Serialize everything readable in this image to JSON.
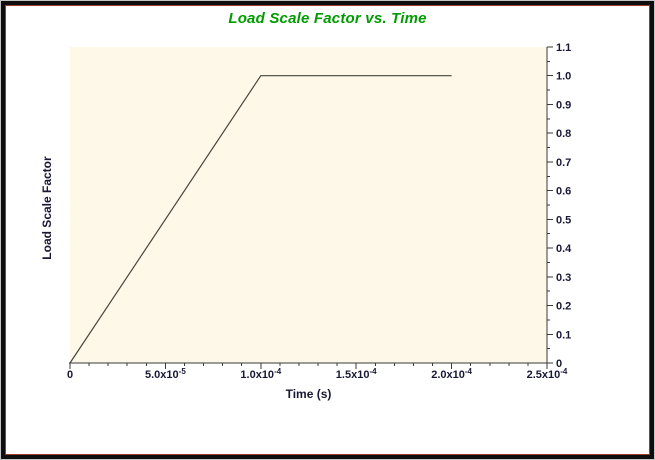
{
  "window": {
    "border_outer_color": "#c4c4c4",
    "border_black_color": "#0e0e0e",
    "border_inner_color": "#9c3b28",
    "background": "#ffffff"
  },
  "title": {
    "text": "Load Scale Factor vs. Time",
    "color": "#009b00"
  },
  "chart_data": {
    "type": "line",
    "title": "Load Scale Factor vs. Time",
    "xlabel": "Time (s)",
    "ylabel": "Load Scale Factor",
    "xlim": [
      0,
      0.00025
    ],
    "ylim": [
      0,
      1.1
    ],
    "grid": false,
    "legend": "none",
    "axis_side": {
      "x": "bottom",
      "y": "right"
    },
    "points": [
      [
        0,
        0
      ],
      [
        0.0001,
        1.0
      ],
      [
        0.0002,
        1.0
      ]
    ],
    "x_ticks": [
      {
        "value": 0,
        "label": "0"
      },
      {
        "value": 5e-05,
        "label": "5.0x10^-5"
      },
      {
        "value": 0.0001,
        "label": "1.0x10^-4"
      },
      {
        "value": 0.00015,
        "label": "1.5x10^-4"
      },
      {
        "value": 0.0002,
        "label": "2.0x10^-4"
      },
      {
        "value": 0.00025,
        "label": "2.5x10^-4"
      }
    ],
    "x_minor_step": 1e-05,
    "y_major_step": 0.1,
    "y_minor_step": 0.05,
    "y_tick_labels": [
      "0",
      "0.1",
      "0.2",
      "0.3",
      "0.4",
      "0.5",
      "0.6",
      "0.7",
      "0.8",
      "0.9",
      "1.0",
      "1.1"
    ],
    "colors": {
      "plot_bg": "#fdf8e8",
      "axis": "#3a3a3a",
      "tick_label": "#181836",
      "line": "#45453f"
    }
  }
}
